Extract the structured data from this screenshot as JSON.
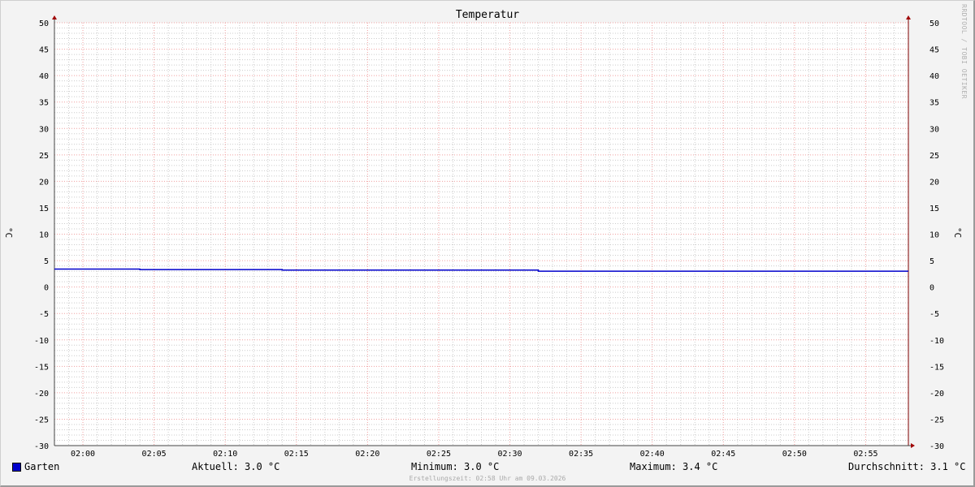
{
  "chart_data": {
    "type": "line",
    "title": "Temperatur",
    "ylabel": "°C",
    "ylim": [
      -30,
      50
    ],
    "yticks": [
      50,
      45,
      40,
      35,
      30,
      25,
      20,
      15,
      10,
      5,
      0,
      -5,
      -10,
      -15,
      -20,
      -25,
      -30
    ],
    "xlim": [
      "01:58",
      "02:58"
    ],
    "xticks": [
      "02:00",
      "02:05",
      "02:10",
      "02:15",
      "02:20",
      "02:25",
      "02:30",
      "02:35",
      "02:40",
      "02:45",
      "02:50",
      "02:55"
    ],
    "grid": true,
    "series": [
      {
        "name": "Garten",
        "color": "#0000cc",
        "x": [
          "01:58",
          "02:04",
          "02:14",
          "02:32",
          "02:58"
        ],
        "y": [
          3.4,
          3.3,
          3.2,
          3.0,
          3.0
        ],
        "step": true
      }
    ],
    "legend_placement": "bottom"
  },
  "legend": {
    "series_name": "Garten",
    "current": "Aktuell: 3.0 °C",
    "minimum": "Minimum: 3.0 °C",
    "maximum": "Maximum: 3.4 °C",
    "average": "Durchschnitt: 3.1 °C"
  },
  "watermark": "RRDTOOL / TOBI OETIKER",
  "footer": "Erstellungszeit: 02:58 Uhr am 09.03.2026"
}
